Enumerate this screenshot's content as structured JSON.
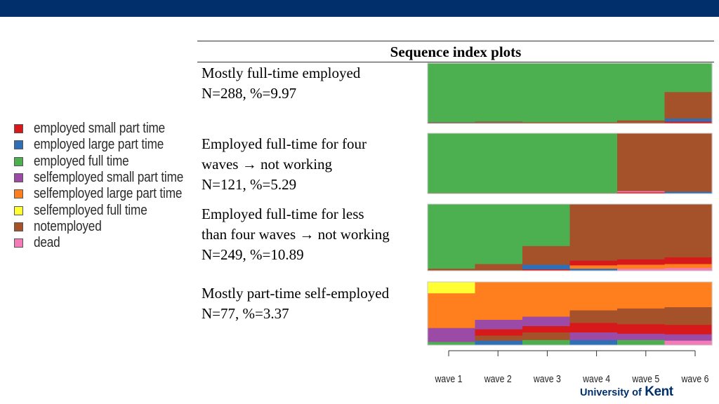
{
  "title": "Sequence index plots",
  "legend": [
    {
      "label": "employed small part time",
      "color": "#d7191c"
    },
    {
      "label": "employed large part time",
      "color": "#2f6fb6"
    },
    {
      "label": "employed full time",
      "color": "#4caf50"
    },
    {
      "label": "selfemployed small part time",
      "color": "#9b4aa6"
    },
    {
      "label": "selfemployed large part time",
      "color": "#ff7f1e"
    },
    {
      "label": "selfemployed full time",
      "color": "#ffff33"
    },
    {
      "label": "notemployed",
      "color": "#a5512a"
    },
    {
      "label": "dead",
      "color": "#f27bb8"
    }
  ],
  "clusters": [
    {
      "lines": [
        "Mostly full-time employed",
        "N=288, %=9.97"
      ]
    },
    {
      "lines": [
        "Employed full-time for four",
        "waves → not working",
        "N=121, %=5.29"
      ]
    },
    {
      "lines": [
        "Employed full-time for less",
        "than four waves → not working",
        "N=249, %=10.89"
      ]
    },
    {
      "lines": [
        "Mostly part-time self-employed",
        "N=77, %=3.37"
      ]
    }
  ],
  "branding": {
    "prefix": "University of",
    "name": "Kent"
  },
  "chart_data": {
    "type": "heatmap",
    "title": "Sequence index plots",
    "x": [
      "wave 1",
      "wave 2",
      "wave 3",
      "wave 4",
      "wave 5",
      "wave 6"
    ],
    "states": [
      "employed small part time",
      "employed large part time",
      "employed full time",
      "selfemployed small part time",
      "selfemployed large part time",
      "selfemployed full time",
      "notemployed",
      "dead"
    ],
    "panels": [
      {
        "n": 288,
        "percent": 9.97,
        "state_share_by_wave": [
          {
            "employed full time": 0.98,
            "notemployed": 0.01,
            "employed large part time": 0.01
          },
          {
            "employed full time": 0.97,
            "notemployed": 0.02,
            "employed large part time": 0.01
          },
          {
            "employed full time": 0.98,
            "notemployed": 0.02
          },
          {
            "employed full time": 0.98,
            "notemployed": 0.02
          },
          {
            "employed full time": 0.95,
            "notemployed": 0.05
          },
          {
            "employed full time": 0.48,
            "notemployed": 0.44,
            "employed large part time": 0.05,
            "employed small part time": 0.03
          }
        ]
      },
      {
        "n": 121,
        "percent": 5.29,
        "state_share_by_wave": [
          {
            "employed full time": 0.99,
            "notemployed": 0.01
          },
          {
            "employed full time": 0.99,
            "notemployed": 0.01
          },
          {
            "employed full time": 0.99,
            "notemployed": 0.01
          },
          {
            "employed full time": 0.99,
            "notemployed": 0.01
          },
          {
            "notemployed": 0.96,
            "dead": 0.02,
            "employed small part time": 0.02
          },
          {
            "notemployed": 0.97,
            "employed large part time": 0.03
          }
        ]
      },
      {
        "n": 249,
        "percent": 10.89,
        "state_share_by_wave": [
          {
            "employed full time": 0.97,
            "notemployed": 0.03
          },
          {
            "employed full time": 0.9,
            "notemployed": 0.1
          },
          {
            "employed full time": 0.63,
            "notemployed": 0.28,
            "employed large part time": 0.07,
            "employed small part time": 0.02
          },
          {
            "notemployed": 0.85,
            "employed small part time": 0.07,
            "selfemployed large part time": 0.05,
            "employed large part time": 0.03
          },
          {
            "notemployed": 0.83,
            "employed small part time": 0.08,
            "selfemployed large part time": 0.06,
            "dead": 0.03
          },
          {
            "notemployed": 0.8,
            "employed small part time": 0.1,
            "selfemployed large part time": 0.06,
            "dead": 0.04
          }
        ]
      },
      {
        "n": 77,
        "percent": 3.37,
        "state_share_by_wave": [
          {
            "selfemployed full time": 0.18,
            "selfemployed large part time": 0.55,
            "selfemployed small part time": 0.22,
            "employed full time": 0.05
          },
          {
            "selfemployed large part time": 0.6,
            "selfemployed small part time": 0.15,
            "employed small part time": 0.1,
            "notemployed": 0.08,
            "employed large part time": 0.07
          },
          {
            "selfemployed large part time": 0.55,
            "selfemployed small part time": 0.15,
            "employed small part time": 0.1,
            "notemployed": 0.12,
            "employed full time": 0.08
          },
          {
            "selfemployed large part time": 0.45,
            "notemployed": 0.2,
            "employed small part time": 0.15,
            "selfemployed small part time": 0.12,
            "employed large part time": 0.08
          },
          {
            "selfemployed large part time": 0.42,
            "notemployed": 0.25,
            "employed small part time": 0.15,
            "selfemployed small part time": 0.1,
            "employed full time": 0.08
          },
          {
            "selfemployed large part time": 0.4,
            "notemployed": 0.28,
            "employed small part time": 0.15,
            "selfemployed small part time": 0.1,
            "dead": 0.07
          }
        ]
      }
    ]
  }
}
